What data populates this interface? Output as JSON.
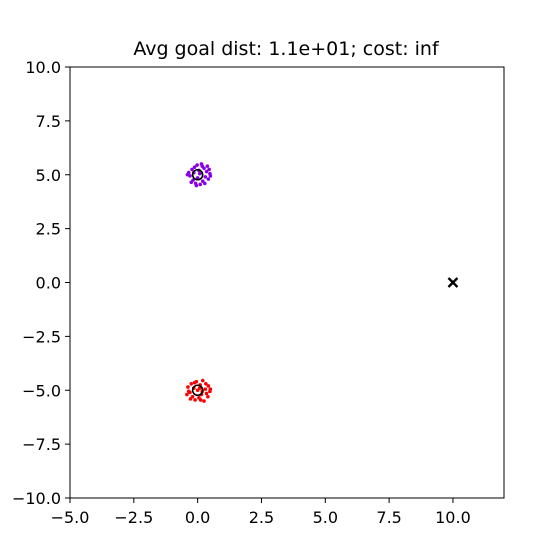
{
  "chart_data": {
    "type": "scatter",
    "title": "Avg goal dist: 1.1e+01; cost: inf",
    "xlabel": "",
    "ylabel": "",
    "xlim": [
      -5.0,
      12.0
    ],
    "ylim": [
      -10.0,
      10.0
    ],
    "xticks": [
      "−5.0",
      "−2.5",
      "0.0",
      "2.5",
      "5.0",
      "7.5",
      "10.0"
    ],
    "xtick_values": [
      -5.0,
      -2.5,
      0.0,
      2.5,
      5.0,
      7.5,
      10.0
    ],
    "yticks": [
      "10.0",
      "7.5",
      "5.0",
      "2.5",
      "0.0",
      "−2.5",
      "−5.0",
      "−7.5",
      "−10.0"
    ],
    "ytick_values": [
      10.0,
      7.5,
      5.0,
      2.5,
      0.0,
      -2.5,
      -5.0,
      -7.5,
      -10.0
    ],
    "grid": false,
    "series": [
      {
        "color": "#8a00e6",
        "marker": "dot",
        "points": [
          [
            -0.35,
            5.1
          ],
          [
            -0.3,
            4.95
          ],
          [
            -0.22,
            5.25
          ],
          [
            -0.18,
            4.75
          ],
          [
            -0.12,
            5.35
          ],
          [
            -0.08,
            4.6
          ],
          [
            -0.02,
            5.45
          ],
          [
            0.0,
            4.85
          ],
          [
            0.05,
            5.2
          ],
          [
            0.1,
            4.55
          ],
          [
            0.15,
            5.5
          ],
          [
            0.2,
            4.7
          ],
          [
            0.25,
            5.3
          ],
          [
            0.3,
            4.9
          ],
          [
            0.35,
            5.15
          ],
          [
            0.42,
            4.8
          ],
          [
            0.48,
            5.05
          ],
          [
            0.5,
            4.95
          ],
          [
            -0.25,
            4.65
          ],
          [
            0.18,
            5.4
          ],
          [
            -0.4,
            5.0
          ],
          [
            0.08,
            5.05
          ],
          [
            -0.15,
            5.1
          ],
          [
            0.28,
            4.6
          ],
          [
            0.38,
            5.4
          ],
          [
            -0.05,
            4.5
          ],
          [
            0.45,
            5.25
          ]
        ]
      },
      {
        "color": "#ff0000",
        "marker": "dot",
        "points": [
          [
            -0.38,
            -4.85
          ],
          [
            -0.3,
            -5.1
          ],
          [
            -0.25,
            -4.7
          ],
          [
            -0.2,
            -5.3
          ],
          [
            -0.15,
            -4.9
          ],
          [
            -0.1,
            -5.45
          ],
          [
            -0.05,
            -4.6
          ],
          [
            0.0,
            -5.0
          ],
          [
            0.05,
            -5.35
          ],
          [
            0.1,
            -4.75
          ],
          [
            0.15,
            -5.2
          ],
          [
            0.2,
            -4.55
          ],
          [
            0.25,
            -5.5
          ],
          [
            0.3,
            -4.95
          ],
          [
            0.35,
            -5.15
          ],
          [
            0.42,
            -4.8
          ],
          [
            0.48,
            -5.05
          ],
          [
            -0.42,
            -5.2
          ],
          [
            -0.28,
            -5.4
          ],
          [
            0.18,
            -5.05
          ],
          [
            0.4,
            -5.3
          ],
          [
            -0.12,
            -4.65
          ],
          [
            0.08,
            -4.9
          ],
          [
            0.32,
            -4.7
          ],
          [
            -0.35,
            -5.05
          ],
          [
            0.12,
            -5.45
          ],
          [
            0.5,
            -4.95
          ]
        ]
      }
    ],
    "starts": [
      [
        0.0,
        5.0
      ],
      [
        0.0,
        -5.0
      ]
    ],
    "goal": [
      10.0,
      0.0
    ]
  }
}
